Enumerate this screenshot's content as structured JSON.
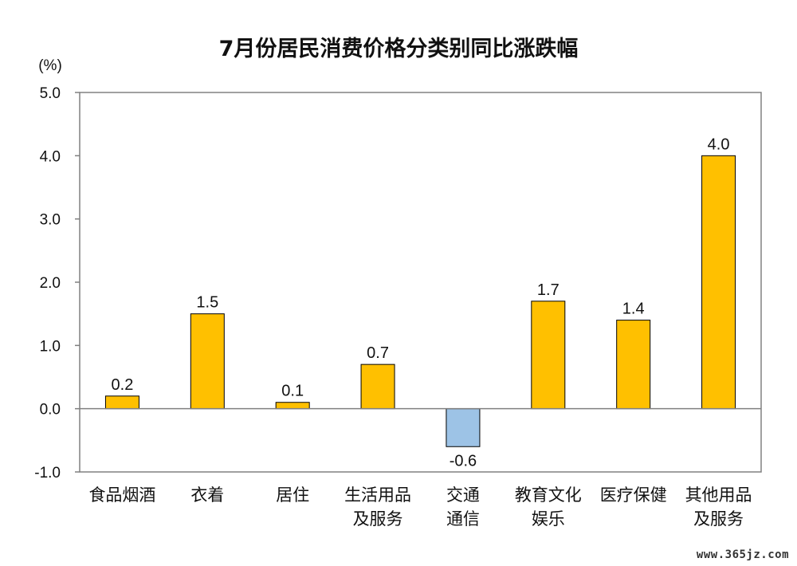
{
  "chart_data": {
    "type": "bar",
    "title": "7月份居民消费价格分类别同比涨跌幅",
    "ylabel": "(%)",
    "ylim": [
      -1.0,
      5.0
    ],
    "yticks": [
      "5.0",
      "4.0",
      "3.0",
      "2.0",
      "1.0",
      "0.0",
      "-1.0"
    ],
    "ytick_values": [
      5,
      4,
      3,
      2,
      1,
      0,
      -1
    ],
    "categories": [
      [
        "食品烟酒"
      ],
      [
        "衣着"
      ],
      [
        "居住"
      ],
      [
        "生活用品",
        "及服务"
      ],
      [
        "交通",
        "通信"
      ],
      [
        "教育文化",
        "娱乐"
      ],
      [
        "医疗保健"
      ],
      [
        "其他用品",
        "及服务"
      ]
    ],
    "values": [
      0.2,
      1.5,
      0.1,
      0.7,
      -0.6,
      1.7,
      1.4,
      4.0
    ],
    "data_labels": [
      "0.2",
      "1.5",
      "0.1",
      "0.7",
      "-0.6",
      "1.7",
      "1.4",
      "4.0"
    ],
    "positive_color": "#FFC000",
    "negative_color": "#9DC3E6",
    "grid": false,
    "legend": "none"
  },
  "watermark": "www.365jz.com"
}
